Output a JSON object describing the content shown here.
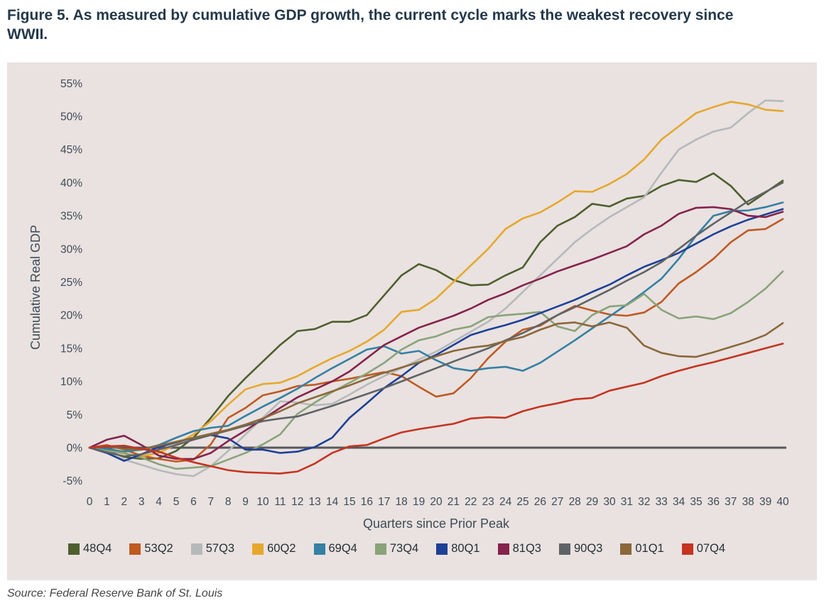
{
  "title": "Figure 5. As measured by cumulative GDP growth, the current cycle marks the weakest recovery since WWII.",
  "source": "Source: Federal Reserve Bank of St. Louis",
  "panel_background": "#e9e2e1",
  "zero_line_color": "#58585a",
  "text_color": "#3f4b55",
  "chart_data": {
    "type": "line",
    "xlabel": "Quarters since Prior Peak",
    "ylabel": "Cumulative Real GDP",
    "x": [
      0,
      1,
      2,
      3,
      4,
      5,
      6,
      7,
      8,
      9,
      10,
      11,
      12,
      13,
      14,
      15,
      16,
      17,
      18,
      19,
      20,
      21,
      22,
      23,
      24,
      25,
      26,
      27,
      28,
      29,
      30,
      31,
      32,
      33,
      34,
      35,
      36,
      37,
      38,
      39,
      40
    ],
    "ylim": [
      -5,
      55
    ],
    "ytick_step": 5,
    "yticks": [
      "55%",
      "50%",
      "45%",
      "40%",
      "35%",
      "30%",
      "25%",
      "20%",
      "15%",
      "10%",
      "5%",
      "0%",
      "-5%"
    ],
    "grid": false,
    "zero_line": true,
    "legend_position": "bottom",
    "series": [
      {
        "name": "48Q4",
        "color": "#4e5f2d",
        "values": [
          0,
          -0.5,
          -1.4,
          -1.7,
          -1.6,
          -0.5,
          1.5,
          4.5,
          7.8,
          10.5,
          13,
          15.5,
          17.6,
          17.9,
          19,
          19,
          20,
          23,
          26,
          27.7,
          26.8,
          25.3,
          24.5,
          24.6,
          26,
          27.2,
          31,
          33.5,
          34.8,
          36.8,
          36.4,
          37.6,
          38,
          39.5,
          40.4,
          40.1,
          41.4,
          39.5,
          36.7,
          38.5,
          40.3
        ]
      },
      {
        "name": "53Q2",
        "color": "#c05a21",
        "values": [
          0,
          0.4,
          -0.3,
          -1.2,
          -1.7,
          -2.1,
          -1.8,
          0.5,
          4.5,
          6,
          7.9,
          8.5,
          9.3,
          9.5,
          10,
          10.4,
          10.9,
          11.4,
          10.8,
          9.2,
          7.7,
          8.2,
          10.5,
          13.5,
          16,
          17.8,
          18.4,
          20,
          21.4,
          20.7,
          20.1,
          19.9,
          20.4,
          22,
          24.8,
          26.5,
          28.5,
          31,
          32.8,
          33,
          34.5
        ]
      },
      {
        "name": "57Q3",
        "color": "#b5b9ba",
        "values": [
          0,
          -0.8,
          -1.8,
          -2.6,
          -3.4,
          -4,
          -4.3,
          -2.8,
          -0.5,
          2,
          4.5,
          7,
          6.8,
          6.4,
          6.6,
          8,
          9.5,
          10.8,
          12,
          13.3,
          14.5,
          16,
          17.5,
          19,
          21,
          23.5,
          26,
          28.5,
          31,
          33,
          34.8,
          36.3,
          37.8,
          41.5,
          45,
          46.5,
          47.7,
          48.3,
          50.5,
          52.4,
          52.3
        ]
      },
      {
        "name": "60Q2",
        "color": "#e6a82c",
        "values": [
          0,
          -0.4,
          -0.9,
          -1.3,
          -0.8,
          0.5,
          2,
          4,
          6.5,
          8.8,
          9.6,
          9.8,
          10.8,
          12.2,
          13.5,
          14.6,
          16,
          17.8,
          20.5,
          20.8,
          22.5,
          25,
          27.5,
          30,
          33,
          34.6,
          35.5,
          37,
          38.7,
          38.6,
          39.8,
          41.3,
          43.5,
          46.5,
          48.5,
          50.5,
          51.4,
          52.2,
          51.8,
          51,
          50.8
        ]
      },
      {
        "name": "69Q4",
        "color": "#3580a3",
        "values": [
          0,
          -0.2,
          -0.6,
          -0.3,
          0.4,
          1.5,
          2.5,
          3,
          3.3,
          4.8,
          6.2,
          7.5,
          8.9,
          10.5,
          12,
          13.4,
          14.8,
          15.3,
          14.2,
          14.6,
          13.2,
          12,
          11.6,
          12,
          12.2,
          11.6,
          12.8,
          14.5,
          16.2,
          18,
          19.8,
          21.6,
          23.5,
          25.5,
          28.5,
          32,
          35,
          35.7,
          35.8,
          36.3,
          37
        ]
      },
      {
        "name": "73Q4",
        "color": "#8aa379",
        "values": [
          0,
          -0.5,
          -0.8,
          -1.5,
          -2.5,
          -3.2,
          -3,
          -2.8,
          -1.8,
          -0.8,
          0.5,
          2,
          5.1,
          6.8,
          8.4,
          9.8,
          11.2,
          12.8,
          14.8,
          16.2,
          16.8,
          17.8,
          18.3,
          19.7,
          20,
          20.2,
          20.5,
          18.3,
          17.6,
          20,
          21.3,
          21.5,
          23.2,
          20.8,
          19.5,
          19.8,
          19.4,
          20.3,
          22,
          24,
          26.6
        ]
      },
      {
        "name": "80Q1",
        "color": "#1e4097",
        "values": [
          0,
          -0.8,
          -2,
          -1,
          0.1,
          0.8,
          1.5,
          1.9,
          1.4,
          -0.3,
          -0.3,
          -0.8,
          -0.6,
          0.1,
          1.5,
          4.5,
          6.7,
          9,
          10.8,
          12.8,
          14,
          15.5,
          17,
          17.8,
          18.5,
          19.3,
          20.3,
          21.3,
          22.3,
          23.5,
          24.6,
          26,
          27.3,
          28.3,
          29.4,
          30.8,
          32.2,
          33.4,
          34.4,
          35.2,
          36
        ]
      },
      {
        "name": "81Q3",
        "color": "#85234c",
        "values": [
          0,
          1.2,
          1.8,
          0.4,
          -1.2,
          -1.7,
          -1.7,
          -0.8,
          1,
          2.6,
          4.3,
          6,
          7.6,
          8.8,
          10,
          11.5,
          13.5,
          15.5,
          16.8,
          18.1,
          19,
          19.9,
          21,
          22.3,
          23.3,
          24.5,
          25.5,
          26.6,
          27.5,
          28.4,
          29.4,
          30.4,
          32.2,
          33.5,
          35.3,
          36.2,
          36.3,
          36,
          35,
          34.8,
          35.6
        ]
      },
      {
        "name": "90Q3",
        "color": "#606365",
        "values": [
          0,
          -0.7,
          -1.3,
          -1,
          -0.3,
          0.4,
          1.2,
          1.9,
          2.6,
          3.3,
          4,
          4.4,
          4.7,
          5.5,
          6.3,
          7.2,
          8.1,
          9,
          10,
          11,
          12,
          13,
          14,
          15,
          16.2,
          17.3,
          18.6,
          20,
          21.2,
          22.5,
          23.8,
          25.2,
          26.5,
          28,
          30,
          32,
          33.8,
          35.5,
          37.2,
          38.6,
          40
        ]
      },
      {
        "name": "01Q1",
        "color": "#8a683a",
        "values": [
          0,
          0.2,
          -0.2,
          -0.3,
          0.3,
          0.9,
          1.5,
          2.1,
          2.7,
          3.5,
          4.4,
          5.5,
          6.7,
          7.6,
          8.5,
          9.4,
          10.4,
          11.3,
          12.1,
          12.9,
          13.8,
          14.6,
          15.1,
          15.4,
          16.1,
          16.7,
          17.8,
          18.7,
          18.9,
          18.3,
          18.9,
          18.1,
          15.4,
          14.3,
          13.8,
          13.7,
          14.4,
          15.2,
          16,
          17,
          18.8
        ]
      },
      {
        "name": "07Q4",
        "color": "#c53420",
        "values": [
          0,
          0.2,
          0.3,
          -0.2,
          -0.6,
          -1.5,
          -2.2,
          -2.8,
          -3.4,
          -3.7,
          -3.8,
          -3.9,
          -3.6,
          -2.4,
          -0.8,
          0.2,
          0.4,
          1.4,
          2.3,
          2.8,
          3.2,
          3.6,
          4.4,
          4.6,
          4.5,
          5.5,
          6.2,
          6.7,
          7.3,
          7.5,
          8.6,
          9.2,
          9.8,
          10.8,
          11.6,
          12.3,
          12.9,
          13.6,
          14.3,
          15,
          15.7
        ]
      }
    ]
  }
}
